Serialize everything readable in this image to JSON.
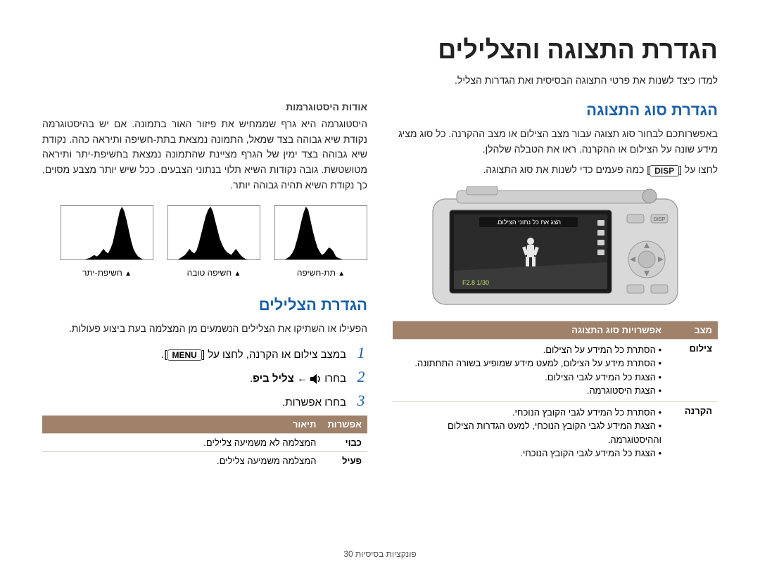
{
  "title": "הגדרת התצוגה והצלילים",
  "subtitle": "למדו כיצד לשנות את פרטי התצוגה הבסיסית ואת הגדרות הצליל.",
  "display_section": {
    "heading": "הגדרת סוג התצוגה",
    "para1": "באפשרותכם לבחור סוג תצוגה עבור מצב הצילום או מצב ההקרנה. כל סוג מציג מידע שונה על הצילום או ההקרנה. ראו את הטבלה שלהלן.",
    "disp_before": "לחצו על",
    "disp_key": "DISP",
    "disp_after": "כמה פעמים כדי לשנות את סוג התצוגה.",
    "screen_caption": "הצג את כל נתוני הצילום.",
    "screen_readout": "F2.8  1/30",
    "table": {
      "head_mode": "מצב",
      "head_opts": "אפשרויות סוג התצוגה",
      "rows": [
        {
          "mode": "צילום",
          "items": [
            "הסתרת כל המידע על הצילום.",
            "הסתרת מידע על הצילום, למעט מידע שמופיע בשורה התחתונה.",
            "הצגת כל המידע לגבי הצילום.",
            "הצגת היסטוגרמה."
          ]
        },
        {
          "mode": "הקרנה",
          "items": [
            "הסתרת כל המידע לגבי הקובץ הנוכחי.",
            "הצגת המידע לגבי הקובץ הנוכחי, למעט הגדרות הצילום וההיסטוגרמה.",
            "הצגת כל המידע לגבי הקובץ הנוכחי."
          ]
        }
      ]
    }
  },
  "histogram_section": {
    "heading": "אודות היסטוגרמות",
    "para": "היסטוגרמה היא גרף שממחיש את פיזור האור בתמונה. אם יש בהיסטוגרמה נקודת שיא גבוהה בצד שמאל, התמונה נמצאת בתת-חשיפה ותיראה כהה. נקודת שיא גבוהה בצד ימין של הגרף מציינת שהתמונה נמצאת בחשיפת-יתר ותיראה מטושטשת. גובה נקודות השיא תלוי בנתוני הצבעים. ככל שיש יותר מצבע מסוים, כך נקודת השיא תהיה גבוהה יותר.",
    "captions": {
      "under": "תת-חשיפה",
      "good": "חשיפה טובה",
      "over": "חשיפת-יתר"
    },
    "histo_data": {
      "under": [
        0,
        0,
        0,
        0,
        0,
        2,
        4,
        8,
        14,
        24,
        36,
        50,
        62,
        70,
        66,
        52,
        38,
        26,
        16,
        10,
        6,
        8,
        12,
        16,
        14,
        10,
        4,
        2,
        1,
        0,
        0,
        0,
        0,
        0,
        0,
        0,
        0,
        0,
        0,
        0
      ],
      "good": [
        0,
        0,
        0,
        0,
        0,
        2,
        4,
        6,
        10,
        14,
        10,
        8,
        12,
        22,
        34,
        46,
        58,
        66,
        70,
        64,
        52,
        40,
        28,
        20,
        14,
        10,
        8,
        6,
        10,
        14,
        10,
        6,
        3,
        1,
        0,
        0,
        0,
        0,
        0,
        0
      ],
      "over": [
        0,
        0,
        0,
        0,
        0,
        0,
        0,
        0,
        0,
        0,
        0,
        1,
        2,
        4,
        6,
        4,
        6,
        10,
        14,
        10,
        8,
        14,
        22,
        36,
        50,
        64,
        70,
        64,
        52,
        38,
        24,
        14,
        8,
        4,
        2,
        0,
        0,
        0,
        0,
        0
      ]
    },
    "histo_style": {
      "bg": "#ffffff",
      "border": "#222222",
      "fill": "#000000",
      "ymax": 70
    }
  },
  "sound_section": {
    "heading": "הגדרת הצלילים",
    "para": "הפעילו או השתיקו את הצלילים הנשמעים מן המצלמה בעת ביצוע פעולות.",
    "steps": [
      {
        "before": "במצב צילום או הקרנה, לחצו על",
        "key": "MENU",
        "after": "."
      },
      {
        "before": "בחרו",
        "icon": "speaker",
        "arrow": "←",
        "bold": "צליל ביפ",
        "after": "."
      },
      {
        "before": "בחרו אפשרות.",
        "key": null,
        "after": ""
      }
    ],
    "table": {
      "head_opt": "אפשרות",
      "head_desc": "תיאור",
      "rows": [
        {
          "opt": "כבוי",
          "desc": "המצלמה לא משמיעה צלילים."
        },
        {
          "opt": "פעיל",
          "desc": "המצלמה משמיעה צלילים."
        }
      ]
    }
  },
  "footer": "פונקציות בסיסיות  30",
  "colors": {
    "heading_blue": "#1a5fa6",
    "table_header_bg": "#a0816a",
    "table_header_fg": "#ffffff",
    "divider": "#d9cfc7"
  }
}
